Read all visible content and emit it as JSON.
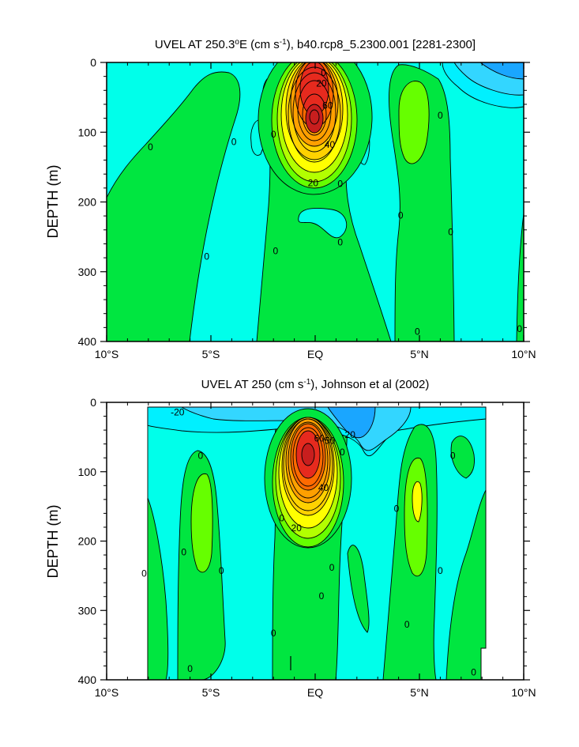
{
  "colors": {
    "cyan": "#00ffea",
    "cyan2": "#00f0ff",
    "blue1": "#33d6ff",
    "blue2": "#1aa6ff",
    "green": "#00e640",
    "ygreen": "#66ff00",
    "lime": "#b3ff00",
    "yellow": "#ffff00",
    "gold": "#ffd200",
    "orange": "#ffa000",
    "dorange": "#ff6a00",
    "red": "#e62a1e",
    "dred": "#c81e1e"
  },
  "chart_data": [
    {
      "type": "contour",
      "title_pre": "UVEL AT 250.3",
      "title_mid": "E (cm s",
      "title_post": "), b40.rcp8_5.2300.001 [2281-2300]",
      "ylabel": "DEPTH (m)",
      "xlabel": "",
      "x_ticks": [
        "10°S",
        "5°S",
        "EQ",
        "5°N",
        "10°N"
      ],
      "x_tick_values": [
        -10,
        -5,
        0,
        5,
        10
      ],
      "y_ticks": [
        "0",
        "100",
        "200",
        "300",
        "400"
      ],
      "y_tick_values": [
        0,
        100,
        200,
        300,
        400
      ],
      "xlim": [
        -10,
        10
      ],
      "ylim": [
        400,
        0
      ],
      "contour_interval": 10,
      "units": "cm/s",
      "jet_core": {
        "lat": -0.1,
        "depth": 80,
        "max_value": 80
      },
      "contour_labels": [
        {
          "text": "20",
          "lat": 0.3,
          "depth": 30
        },
        {
          "text": "0",
          "lat": 0.4,
          "depth": 15
        },
        {
          "text": "60",
          "lat": 0.6,
          "depth": 62
        },
        {
          "text": "40",
          "lat": 0.7,
          "depth": 118
        },
        {
          "text": "20",
          "lat": -0.1,
          "depth": 173
        },
        {
          "text": "0",
          "lat": -7.9,
          "depth": 121
        },
        {
          "text": "0",
          "lat": -3.9,
          "depth": 114
        },
        {
          "text": "0",
          "lat": -2.0,
          "depth": 103
        },
        {
          "text": "0",
          "lat": 1.2,
          "depth": 174
        },
        {
          "text": "0",
          "lat": 6.0,
          "depth": 76
        },
        {
          "text": "0",
          "lat": 4.1,
          "depth": 219
        },
        {
          "text": "0",
          "lat": 6.5,
          "depth": 243
        },
        {
          "text": "0",
          "lat": -5.2,
          "depth": 278
        },
        {
          "text": "0",
          "lat": -1.9,
          "depth": 270
        },
        {
          "text": "0",
          "lat": 1.2,
          "depth": 258
        },
        {
          "text": "0",
          "lat": 4.9,
          "depth": 386
        },
        {
          "text": "0",
          "lat": 9.8,
          "depth": 382
        }
      ]
    },
    {
      "type": "contour",
      "title_pre": "UVEL AT 250 (cm s",
      "title_mid": "",
      "title_post": "), Johnson et al (2002)",
      "ylabel": "DEPTH (m)",
      "xlabel": "",
      "x_ticks": [
        "10°S",
        "5°S",
        "EQ",
        "5°N",
        "10°N"
      ],
      "x_tick_values": [
        -10,
        -5,
        0,
        5,
        10
      ],
      "y_ticks": [
        "0",
        "100",
        "200",
        "300",
        "400"
      ],
      "y_tick_values": [
        0,
        100,
        200,
        300,
        400
      ],
      "xlim": [
        -10,
        10
      ],
      "ylim": [
        400,
        0
      ],
      "contour_interval": 10,
      "units": "cm/s",
      "jet_core": {
        "lat": -0.3,
        "depth": 75,
        "max_value": 80
      },
      "contour_labels": [
        {
          "text": "-20",
          "lat": -6.6,
          "depth": 14
        },
        {
          "text": "60",
          "lat": 0.2,
          "depth": 52
        },
        {
          "text": "50",
          "lat": 0.7,
          "depth": 55
        },
        {
          "text": "-20",
          "lat": 1.6,
          "depth": 47
        },
        {
          "text": "40",
          "lat": 0.4,
          "depth": 123
        },
        {
          "text": "20",
          "lat": -0.9,
          "depth": 181
        },
        {
          "text": "0",
          "lat": 1.3,
          "depth": 72
        },
        {
          "text": "0",
          "lat": -5.5,
          "depth": 77
        },
        {
          "text": "0",
          "lat": -6.3,
          "depth": 216
        },
        {
          "text": "0",
          "lat": -4.5,
          "depth": 243
        },
        {
          "text": "0",
          "lat": -8.2,
          "depth": 247
        },
        {
          "text": "0",
          "lat": -1.6,
          "depth": 167
        },
        {
          "text": "0",
          "lat": 0.8,
          "depth": 238
        },
        {
          "text": "0",
          "lat": 0.3,
          "depth": 279
        },
        {
          "text": "0",
          "lat": 3.9,
          "depth": 153
        },
        {
          "text": "0",
          "lat": 6.6,
          "depth": 77
        },
        {
          "text": "0",
          "lat": 6.0,
          "depth": 243
        },
        {
          "text": "0",
          "lat": 4.4,
          "depth": 320
        },
        {
          "text": "0",
          "lat": -2.0,
          "depth": 333
        },
        {
          "text": "0",
          "lat": -6.0,
          "depth": 384
        },
        {
          "text": "0",
          "lat": 7.6,
          "depth": 389
        }
      ]
    }
  ]
}
